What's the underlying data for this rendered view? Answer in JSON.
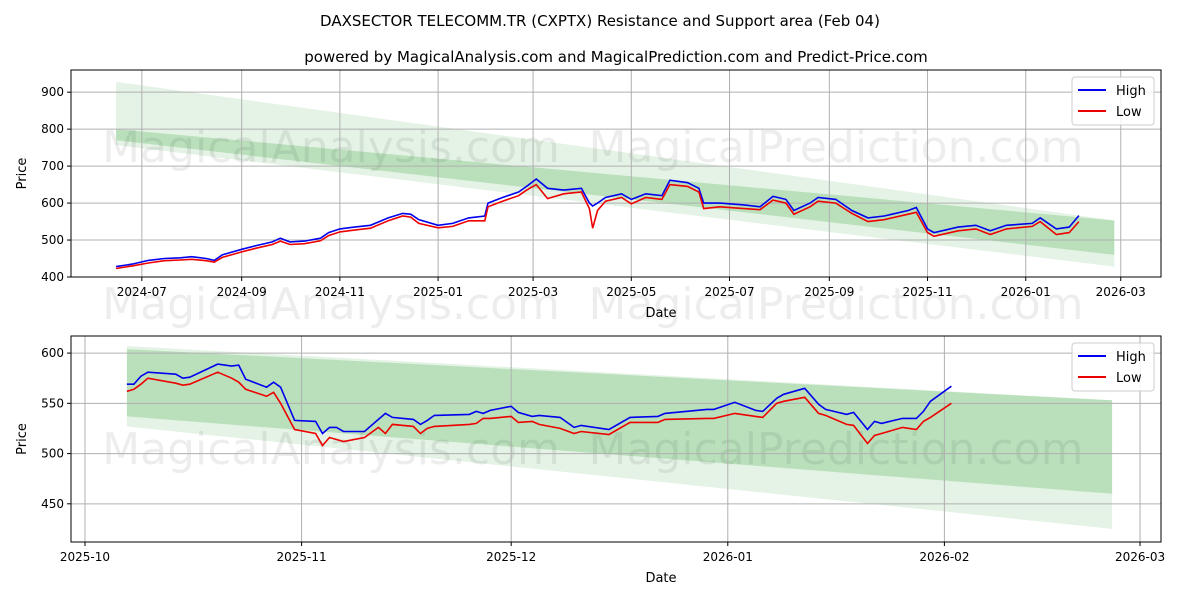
{
  "title": "DAXSECTOR TELECOMM.TR (CXPTX) Resistance and Support area (Feb 04)",
  "subtitle": "powered by MagicalAnalysis.com and MagicalPrediction.com and Predict-Price.com",
  "watermarks": [
    "MagicalAnalysis.com",
    "MagicalPrediction.com"
  ],
  "colors": {
    "high": "#0000ee",
    "low": "#ee0000",
    "band_dark": "#4caf50",
    "band_light": "#4caf50",
    "grid": "#b0b0b0"
  },
  "chart_data": [
    {
      "type": "line",
      "xlabel": "Date",
      "ylabel": "Price",
      "ylim": [
        400,
        960
      ],
      "xlim": [
        "2024-05-18",
        "2026-03-26"
      ],
      "yticks": [
        400,
        500,
        600,
        700,
        800,
        900
      ],
      "xticks": [
        "2024-07",
        "2024-09",
        "2024-11",
        "2025-01",
        "2025-03",
        "2025-05",
        "2025-07",
        "2025-09",
        "2025-11",
        "2026-01",
        "2026-03"
      ],
      "legend": {
        "position": "top-right",
        "entries": [
          "High",
          "Low"
        ]
      },
      "grid": true,
      "bands": {
        "dates": [
          "2024-06-15",
          "2026-02-25"
        ],
        "light_upper": [
          928,
          553
        ],
        "light_lower": [
          757,
          428
        ],
        "dark_upper": [
          800,
          553
        ],
        "dark_lower": [
          770,
          460
        ]
      },
      "series": [
        {
          "name": "High",
          "x": [
            "2024-06-15",
            "2024-06-25",
            "2024-07-05",
            "2024-07-15",
            "2024-07-25",
            "2024-08-01",
            "2024-08-10",
            "2024-08-15",
            "2024-08-20",
            "2024-09-01",
            "2024-09-10",
            "2024-09-20",
            "2024-09-25",
            "2024-10-01",
            "2024-10-10",
            "2024-10-20",
            "2024-10-25",
            "2024-11-01",
            "2024-11-10",
            "2024-11-20",
            "2024-12-01",
            "2024-12-10",
            "2024-12-15",
            "2024-12-20",
            "2025-01-01",
            "2025-01-10",
            "2025-01-20",
            "2025-01-30",
            "2025-02-01",
            "2025-02-10",
            "2025-02-20",
            "2025-02-25",
            "2025-03-03",
            "2025-03-10",
            "2025-03-20",
            "2025-03-31",
            "2025-04-05",
            "2025-04-07",
            "2025-04-10",
            "2025-04-15",
            "2025-04-25",
            "2025-05-01",
            "2025-05-10",
            "2025-05-20",
            "2025-05-25",
            "2025-06-05",
            "2025-06-12",
            "2025-06-15",
            "2025-06-25",
            "2025-07-10",
            "2025-07-20",
            "2025-07-28",
            "2025-08-05",
            "2025-08-10",
            "2025-08-20",
            "2025-08-25",
            "2025-09-05",
            "2025-09-15",
            "2025-09-25",
            "2025-10-05",
            "2025-10-20",
            "2025-10-25",
            "2025-11-01",
            "2025-11-05",
            "2025-11-20",
            "2025-12-01",
            "2025-12-10",
            "2025-12-20",
            "2026-01-05",
            "2026-01-10",
            "2026-01-20",
            "2026-01-28",
            "2026-02-03"
          ],
          "values": [
            428,
            435,
            445,
            450,
            452,
            455,
            450,
            445,
            460,
            475,
            485,
            495,
            505,
            495,
            497,
            505,
            520,
            530,
            535,
            540,
            560,
            572,
            570,
            555,
            540,
            545,
            560,
            565,
            600,
            615,
            630,
            645,
            665,
            640,
            635,
            640,
            600,
            592,
            600,
            615,
            625,
            610,
            625,
            620,
            662,
            655,
            640,
            600,
            600,
            595,
            590,
            618,
            610,
            580,
            600,
            615,
            610,
            580,
            560,
            565,
            580,
            588,
            530,
            520,
            535,
            540,
            525,
            540,
            545,
            560,
            530,
            535,
            566
          ]
        },
        {
          "name": "Low",
          "x": [
            "2024-06-15",
            "2024-06-25",
            "2024-07-05",
            "2024-07-15",
            "2024-07-25",
            "2024-08-01",
            "2024-08-10",
            "2024-08-15",
            "2024-08-20",
            "2024-09-01",
            "2024-09-10",
            "2024-09-20",
            "2024-09-25",
            "2024-10-01",
            "2024-10-10",
            "2024-10-20",
            "2024-10-25",
            "2024-11-01",
            "2024-11-10",
            "2024-11-20",
            "2024-12-01",
            "2024-12-10",
            "2024-12-15",
            "2024-12-20",
            "2025-01-01",
            "2025-01-10",
            "2025-01-20",
            "2025-01-30",
            "2025-02-01",
            "2025-02-10",
            "2025-02-20",
            "2025-02-25",
            "2025-03-03",
            "2025-03-10",
            "2025-03-20",
            "2025-03-31",
            "2025-04-05",
            "2025-04-07",
            "2025-04-10",
            "2025-04-15",
            "2025-04-25",
            "2025-05-01",
            "2025-05-10",
            "2025-05-20",
            "2025-05-25",
            "2025-06-05",
            "2025-06-12",
            "2025-06-15",
            "2025-06-25",
            "2025-07-10",
            "2025-07-20",
            "2025-07-28",
            "2025-08-05",
            "2025-08-10",
            "2025-08-20",
            "2025-08-25",
            "2025-09-05",
            "2025-09-15",
            "2025-09-25",
            "2025-10-05",
            "2025-10-20",
            "2025-10-25",
            "2025-11-01",
            "2025-11-05",
            "2025-11-20",
            "2025-12-01",
            "2025-12-10",
            "2025-12-20",
            "2026-01-05",
            "2026-01-10",
            "2026-01-20",
            "2026-01-28",
            "2026-02-03"
          ],
          "values": [
            423,
            430,
            438,
            444,
            446,
            448,
            444,
            440,
            453,
            468,
            478,
            488,
            497,
            488,
            490,
            498,
            512,
            522,
            527,
            532,
            552,
            565,
            562,
            545,
            533,
            537,
            552,
            552,
            590,
            605,
            620,
            635,
            650,
            612,
            625,
            630,
            585,
            532,
            580,
            605,
            615,
            598,
            615,
            610,
            650,
            645,
            630,
            585,
            590,
            585,
            582,
            608,
            600,
            570,
            590,
            605,
            600,
            572,
            550,
            555,
            570,
            575,
            520,
            510,
            525,
            530,
            515,
            530,
            537,
            550,
            515,
            520,
            550
          ]
        }
      ]
    },
    {
      "type": "line",
      "xlabel": "Date",
      "ylabel": "Price",
      "ylim": [
        412,
        617
      ],
      "xlim": [
        "2025-09-29",
        "2026-03-04"
      ],
      "yticks": [
        450,
        500,
        550,
        600
      ],
      "xticks": [
        "2025-10",
        "2025-11",
        "2025-12",
        "2026-01",
        "2026-02",
        "2026-03"
      ],
      "legend": {
        "position": "top-right",
        "entries": [
          "High",
          "Low"
        ]
      },
      "grid": true,
      "bands": {
        "dates": [
          "2025-10-07",
          "2026-02-25"
        ],
        "light_upper": [
          607,
          553
        ],
        "light_lower": [
          527,
          425
        ],
        "dark_upper": [
          604,
          553
        ],
        "dark_lower": [
          537,
          460
        ]
      },
      "series": [
        {
          "name": "High",
          "x": [
            "2025-10-07",
            "2025-10-08",
            "2025-10-09",
            "2025-10-10",
            "2025-10-14",
            "2025-10-15",
            "2025-10-16",
            "2025-10-20",
            "2025-10-22",
            "2025-10-23",
            "2025-10-24",
            "2025-10-27",
            "2025-10-28",
            "2025-10-29",
            "2025-10-31",
            "2025-11-03",
            "2025-11-04",
            "2025-11-05",
            "2025-11-06",
            "2025-11-07",
            "2025-11-10",
            "2025-11-12",
            "2025-11-13",
            "2025-11-14",
            "2025-11-17",
            "2025-11-18",
            "2025-11-19",
            "2025-11-20",
            "2025-11-25",
            "2025-11-26",
            "2025-11-27",
            "2025-11-28",
            "2025-12-01",
            "2025-12-02",
            "2025-12-04",
            "2025-12-05",
            "2025-12-08",
            "2025-12-10",
            "2025-12-11",
            "2025-12-15",
            "2025-12-18",
            "2025-12-22",
            "2025-12-23",
            "2025-12-29",
            "2025-12-30",
            "2026-01-02",
            "2026-01-05",
            "2026-01-06",
            "2026-01-08",
            "2026-01-09",
            "2026-01-12",
            "2026-01-14",
            "2026-01-15",
            "2026-01-18",
            "2026-01-19",
            "2026-01-21",
            "2026-01-22",
            "2026-01-23",
            "2026-01-26",
            "2026-01-28",
            "2026-01-29",
            "2026-01-30",
            "2026-02-02"
          ],
          "values": [
            569,
            569,
            577,
            581,
            579,
            575,
            576,
            589,
            587,
            588,
            574,
            566,
            571,
            566,
            533,
            532,
            520,
            526,
            526,
            522,
            522,
            534,
            540,
            536,
            534,
            529,
            533,
            538,
            539,
            542,
            540,
            543,
            547,
            541,
            537,
            538,
            536,
            526,
            528,
            524,
            536,
            537,
            540,
            544,
            544,
            551,
            543,
            542,
            555,
            559,
            565,
            549,
            544,
            539,
            541,
            524,
            532,
            530,
            535,
            535,
            542,
            552,
            567
          ]
        },
        {
          "name": "Low",
          "x": [
            "2025-10-07",
            "2025-10-08",
            "2025-10-09",
            "2025-10-10",
            "2025-10-14",
            "2025-10-15",
            "2025-10-16",
            "2025-10-20",
            "2025-10-22",
            "2025-10-23",
            "2025-10-24",
            "2025-10-27",
            "2025-10-28",
            "2025-10-29",
            "2025-10-31",
            "2025-11-03",
            "2025-11-04",
            "2025-11-05",
            "2025-11-06",
            "2025-11-07",
            "2025-11-10",
            "2025-11-12",
            "2025-11-13",
            "2025-11-14",
            "2025-11-17",
            "2025-11-18",
            "2025-11-19",
            "2025-11-20",
            "2025-11-25",
            "2025-11-26",
            "2025-11-27",
            "2025-11-28",
            "2025-12-01",
            "2025-12-02",
            "2025-12-04",
            "2025-12-05",
            "2025-12-08",
            "2025-12-10",
            "2025-12-11",
            "2025-12-15",
            "2025-12-18",
            "2025-12-22",
            "2025-12-23",
            "2025-12-29",
            "2025-12-30",
            "2026-01-02",
            "2026-01-05",
            "2026-01-06",
            "2026-01-08",
            "2026-01-09",
            "2026-01-12",
            "2026-01-14",
            "2026-01-15",
            "2026-01-18",
            "2026-01-19",
            "2026-01-21",
            "2026-01-22",
            "2026-01-23",
            "2026-01-26",
            "2026-01-28",
            "2026-01-29",
            "2026-01-30",
            "2026-02-02"
          ],
          "values": [
            562,
            564,
            569,
            575,
            570,
            568,
            569,
            581,
            575,
            571,
            564,
            557,
            561,
            550,
            524,
            520,
            508,
            516,
            514,
            512,
            516,
            526,
            520,
            529,
            527,
            520,
            525,
            527,
            529,
            530,
            535,
            535,
            537,
            531,
            532,
            529,
            525,
            520,
            522,
            519,
            531,
            531,
            534,
            535,
            535,
            540,
            537,
            536,
            550,
            552,
            556,
            540,
            538,
            529,
            528,
            510,
            518,
            520,
            526,
            524,
            532,
            536,
            550
          ]
        }
      ]
    }
  ]
}
